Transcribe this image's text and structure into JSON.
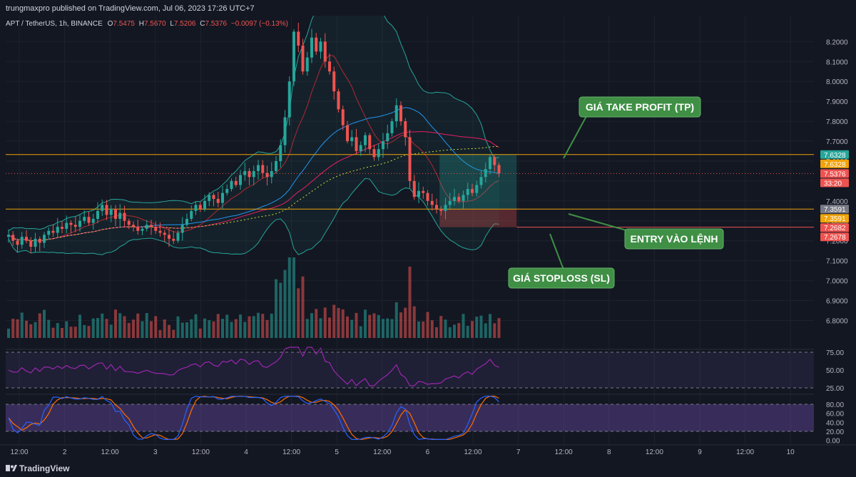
{
  "header": {
    "published_line": "trungmaxpro published on TradingView.com, Jul 06, 2023 17:26 UTC+7",
    "symbol_line": "APT / TetherUS, 1h, BINANCE",
    "ohlc": {
      "open_label": "O",
      "open": "7.5475",
      "high_label": "H",
      "high": "7.5670",
      "low_label": "L",
      "low": "7.5206",
      "close_label": "C",
      "close": "7.5376",
      "change": "−0.0097 (−0.13%)"
    }
  },
  "footer": {
    "brand": "TradingView"
  },
  "annotations": {
    "take_profit": "GIÁ TAKE PROFIT (TP)",
    "entry": "ENTRY VÀO LỆNH",
    "stoploss": "GIÁ STOPLOSS (SL)"
  },
  "colors": {
    "background": "#131722",
    "up": "#26a69a",
    "down": "#ef5350",
    "level_line": "#f0a30a",
    "bb_line": "#26a69a",
    "callout": "#3f8f45",
    "rsi": "#9c27b0",
    "stoch_k": "#2962ff",
    "stoch_d": "#ff6d00"
  },
  "chart_data": {
    "type": "candlestick",
    "timeframe": "1h",
    "x_ticks": [
      "12:00",
      "2",
      "12:00",
      "3",
      "12:00",
      "4",
      "12:00",
      "5",
      "12:00",
      "6",
      "12:00",
      "7",
      "12:00",
      "8",
      "12:00",
      "9",
      "12:00",
      "10"
    ],
    "price_axis": {
      "range": [
        6.73,
        8.33
      ],
      "ticks": [
        "8.2000",
        "8.1000",
        "8.0000",
        "7.9000",
        "7.8000",
        "7.7000",
        "7.6000",
        "7.5000",
        "7.4000",
        "7.3000",
        "7.2000",
        "7.1000",
        "7.0000",
        "6.9000",
        "6.8000"
      ]
    },
    "price_labels": [
      {
        "text": "7.6328",
        "value": 7.6328,
        "color": "#26a69a"
      },
      {
        "text": "7.6328",
        "value": 7.6328,
        "color": "#f0a30a"
      },
      {
        "text": "7.5376",
        "value": 7.5376,
        "color": "#ef5350"
      },
      {
        "text": "33:20",
        "value": 7.5376,
        "color": "#ef5350"
      },
      {
        "text": "7.3591",
        "value": 7.3591,
        "color": "#787b86"
      },
      {
        "text": "7.3591",
        "value": 7.3591,
        "color": "#f0a30a"
      },
      {
        "text": "7.2682",
        "value": 7.2682,
        "color": "#ef5350"
      },
      {
        "text": "7.2678",
        "value": 7.2678,
        "color": "#ef5350"
      }
    ],
    "levels": {
      "take_profit": 7.6328,
      "entry": 7.3591,
      "stoploss": 7.2682
    },
    "trade_box": {
      "start_index": 97,
      "end_index": 113
    },
    "series_close": [
      7.23,
      7.2,
      7.18,
      7.22,
      7.2,
      7.17,
      7.21,
      7.19,
      7.23,
      7.25,
      7.24,
      7.27,
      7.26,
      7.29,
      7.28,
      7.27,
      7.3,
      7.32,
      7.29,
      7.31,
      7.35,
      7.38,
      7.33,
      7.36,
      7.31,
      7.34,
      7.3,
      7.28,
      7.27,
      7.25,
      7.26,
      7.28,
      7.27,
      7.25,
      7.24,
      7.23,
      7.21,
      7.2,
      7.24,
      7.28,
      7.31,
      7.35,
      7.38,
      7.36,
      7.4,
      7.43,
      7.41,
      7.39,
      7.44,
      7.46,
      7.5,
      7.48,
      7.53,
      7.55,
      7.52,
      7.55,
      7.58,
      7.54,
      7.52,
      7.55,
      7.6,
      7.68,
      7.82,
      8.0,
      8.25,
      8.18,
      8.05,
      8.12,
      8.22,
      8.15,
      8.2,
      8.1,
      8.05,
      7.95,
      7.86,
      7.78,
      7.7,
      7.72,
      7.65,
      7.68,
      7.73,
      7.66,
      7.62,
      7.66,
      7.7,
      7.74,
      7.8,
      7.88,
      7.8,
      7.72,
      7.5,
      7.42,
      7.45,
      7.44,
      7.4,
      7.38,
      7.36,
      7.35,
      7.38,
      7.4,
      7.42,
      7.4,
      7.43,
      7.46,
      7.44,
      7.48,
      7.52,
      7.56,
      7.62,
      7.58,
      7.54
    ],
    "volume_axis": {
      "range": [
        0,
        100
      ]
    },
    "rsi": {
      "ticks": [
        "75.00",
        "50.00",
        "25.00"
      ],
      "range": [
        0,
        100
      ],
      "upper": 70,
      "lower": 30
    },
    "stoch": {
      "ticks": [
        "80.00",
        "60.00",
        "40.00",
        "20.00",
        "0.00"
      ],
      "range": [
        0,
        100
      ],
      "upper": 80,
      "lower": 20
    }
  }
}
